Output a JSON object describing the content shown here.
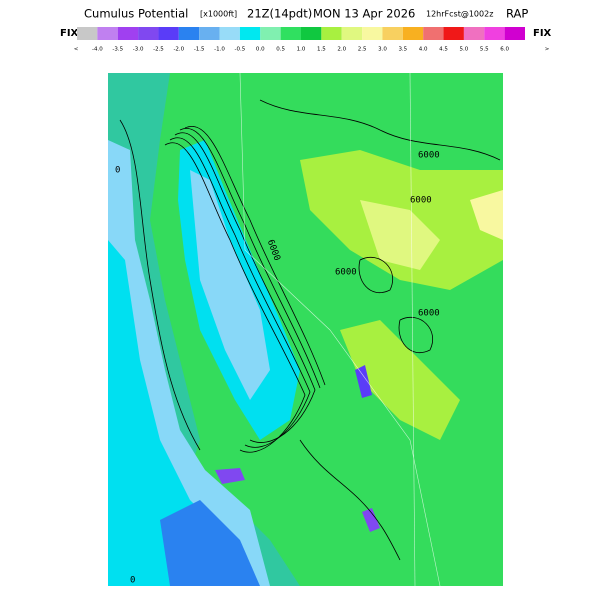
{
  "header": {
    "title": "Cumulus Potential",
    "units": "[x1000ft]",
    "valid": "21Z(14pdt)",
    "date": "MON 13 Apr 2026",
    "forecast": "12hrFcst@1002z",
    "model": "RAP"
  },
  "colorbar": {
    "left_label": "FIX",
    "right_label": "FIX",
    "low_end": "<",
    "high_end": ">",
    "labels": [
      "-4.0",
      "-3.5",
      "-3.0",
      "-2.5",
      "-2.0",
      "-1.5",
      "-1.0",
      "-0.5",
      "0.0",
      "0.5",
      "1.0",
      "1.5",
      "2.0",
      "2.5",
      "3.0",
      "3.5",
      "4.0",
      "4.5",
      "5.0",
      "5.5",
      "6.0"
    ],
    "colors": [
      "#c8c8c8",
      "#c080f0",
      "#a040f0",
      "#8048f0",
      "#5a3cf8",
      "#2a82f0",
      "#68b0f0",
      "#98dcf8",
      "#00e8f0",
      "#80f0b0",
      "#30e060",
      "#10c840",
      "#a8f040",
      "#e0f880",
      "#f8f8a0",
      "#f8d060",
      "#f8b020",
      "#f07070",
      "#f01818",
      "#f070c0",
      "#f040e0",
      "#d000d0"
    ]
  },
  "map": {
    "contour_labels": [
      "0",
      "0",
      "6000",
      "6000",
      "6000",
      "6000",
      "6000"
    ]
  }
}
